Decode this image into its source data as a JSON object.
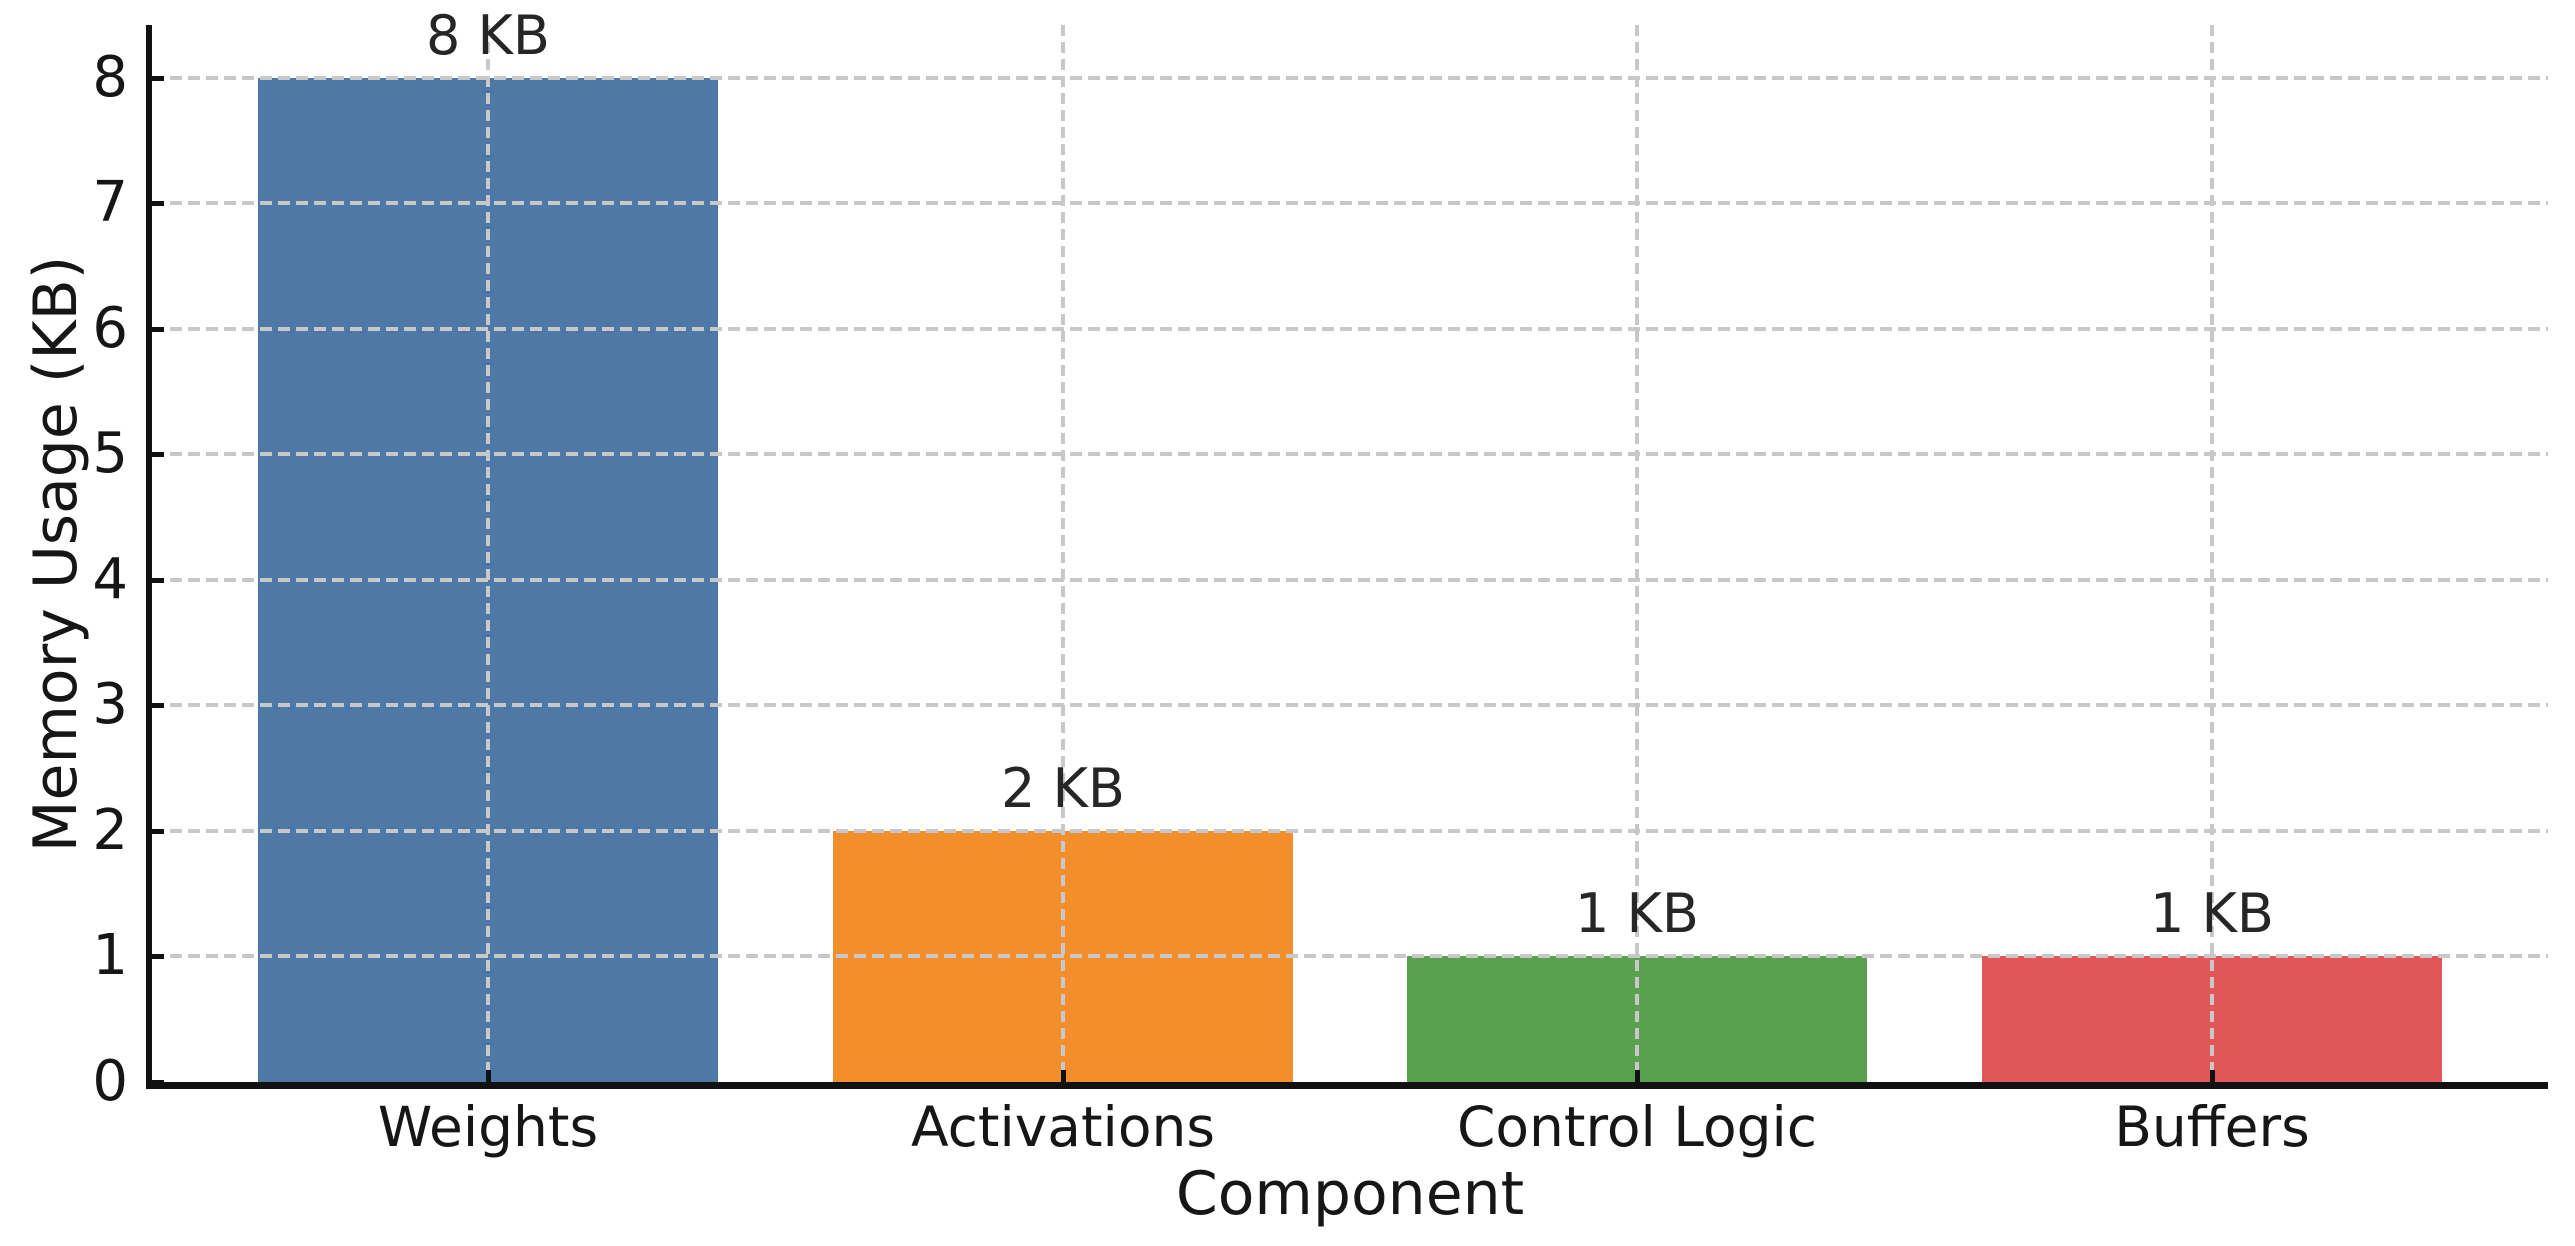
{
  "chart_data": {
    "type": "bar",
    "title": "",
    "xlabel": "Component",
    "ylabel": "Memory Usage (KB)",
    "categories": [
      "Weights",
      "Activations",
      "Control Logic",
      "Buffers"
    ],
    "values": [
      8,
      2,
      1,
      1
    ],
    "bar_labels": [
      "8 KB",
      "2 KB",
      "1 KB",
      "1 KB"
    ],
    "bar_colors": [
      "#4E79A7",
      "#F28E2B",
      "#59A14F",
      "#E15759"
    ],
    "ytick_labels": [
      "0",
      "1",
      "2",
      "3",
      "4",
      "5",
      "6",
      "7",
      "8"
    ],
    "ytick_values": [
      0,
      1,
      2,
      3,
      4,
      5,
      6,
      7,
      8
    ],
    "ylim": [
      0,
      8.42
    ],
    "bar_width_fraction": 0.8,
    "grid": {
      "show": true,
      "line_style": "dashed",
      "axes": "both",
      "drawn_above_bars": true
    },
    "legend": "none",
    "colors": {
      "grid": "#C8C8C8",
      "spine": "#111111",
      "text": "#161616",
      "value_label": "#262626",
      "background": "#FFFFFF"
    }
  }
}
